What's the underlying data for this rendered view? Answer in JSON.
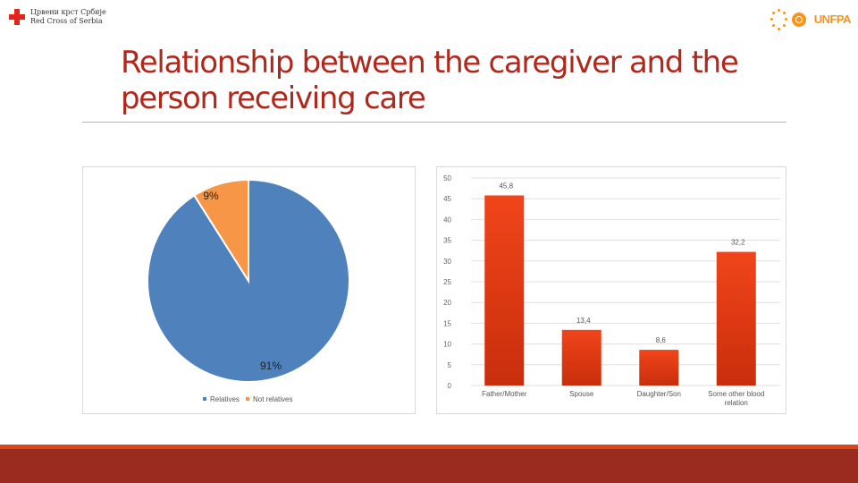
{
  "header": {
    "left_logo": {
      "icon": "red-cross-icon",
      "line1": "Црвени крст Србије",
      "line2": "Red Cross of Serbia"
    },
    "right_logo": {
      "icon": "unfpa-logo-icon",
      "text": "UNFPA"
    }
  },
  "title": "Relationship between the caregiver and the person receiving care",
  "colors": {
    "title": "#b0271c",
    "pie_relatives": "#4f81bd",
    "pie_not_relatives": "#f79646",
    "bar": "#e33d12",
    "footer": "#9c2b1f"
  },
  "chart_data": [
    {
      "type": "pie",
      "slices": [
        {
          "label": "Relatives",
          "value": 91,
          "display": "91%"
        },
        {
          "label": "Not relatives",
          "value": 9,
          "display": "9%"
        }
      ],
      "legend": "bottom-left"
    },
    {
      "type": "bar",
      "categories": [
        "Father/Mother",
        "Spouse",
        "Daughter/Son",
        "Some other blood relation"
      ],
      "values": [
        45.8,
        13.4,
        8.6,
        32.2
      ],
      "value_labels": [
        "45,8",
        "13,4",
        "8,6",
        "32,2"
      ],
      "yticks": [
        "0",
        "5",
        "10",
        "15",
        "20",
        "25",
        "30",
        "35",
        "40",
        "45",
        "50"
      ],
      "ylim": [
        0,
        50
      ],
      "grid": true
    }
  ]
}
